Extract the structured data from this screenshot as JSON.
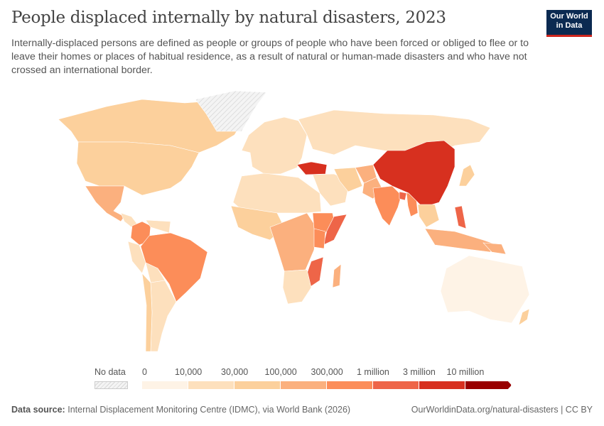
{
  "title": "People displaced internally by natural disasters, 2023",
  "subtitle": "Internally-displaced persons are defined as people or groups of people who have been forced or obliged to flee or to leave their homes or places of habitual residence, as a result of natural or human-made disasters and who have not crossed an international border.",
  "logo": {
    "line1": "Our World",
    "line2": "in Data",
    "bg": "#0b2a51",
    "accent": "#ce261e"
  },
  "chart_data": {
    "type": "choropleth",
    "legend": {
      "no_data_label": "No data",
      "ticks": [
        "0",
        "10,000",
        "30,000",
        "100,000",
        "300,000",
        "1 million",
        "3 million",
        "10 million"
      ],
      "colors": [
        "#fef3e6",
        "#fde0bd",
        "#fcd09c",
        "#fbb07e",
        "#fc8d59",
        "#ee6548",
        "#d7301f",
        "#990000"
      ],
      "no_data_color": "#e8e8e8"
    },
    "regions": {
      "Canada": 2,
      "United States": 2,
      "Mexico": 3,
      "Central America": 1,
      "Colombia": 4,
      "Venezuela": 1,
      "Peru": 1,
      "Brazil": 4,
      "Bolivia": 1,
      "Argentina": 1,
      "Chile": 2,
      "Europe": 1,
      "Russia": 1,
      "Turkey": 6,
      "Middle East": 1,
      "Iran": 2,
      "Afghanistan": 3,
      "Pakistan": 3,
      "India": 4,
      "Bangladesh": 5,
      "Myanmar": 4,
      "China": 6,
      "Japan": 2,
      "Philippines": 5,
      "Indonesia": 3,
      "Southeast Asia": 2,
      "North Africa": 1,
      "West Africa": 2,
      "Central Africa": 3,
      "Ethiopia": 4,
      "Somalia": 5,
      "Kenya": 4,
      "Mozambique": 5,
      "Southern Africa": 1,
      "Madagascar": 3,
      "Australia": 0,
      "New Zealand": 2,
      "Papua New Guinea": 3
    }
  },
  "footer": {
    "source_label": "Data source:",
    "source": "Internal Displacement Monitoring Centre (IDMC), via World Bank (2026)",
    "url": "OurWorldinData.org/natural-disasters | CC BY"
  }
}
